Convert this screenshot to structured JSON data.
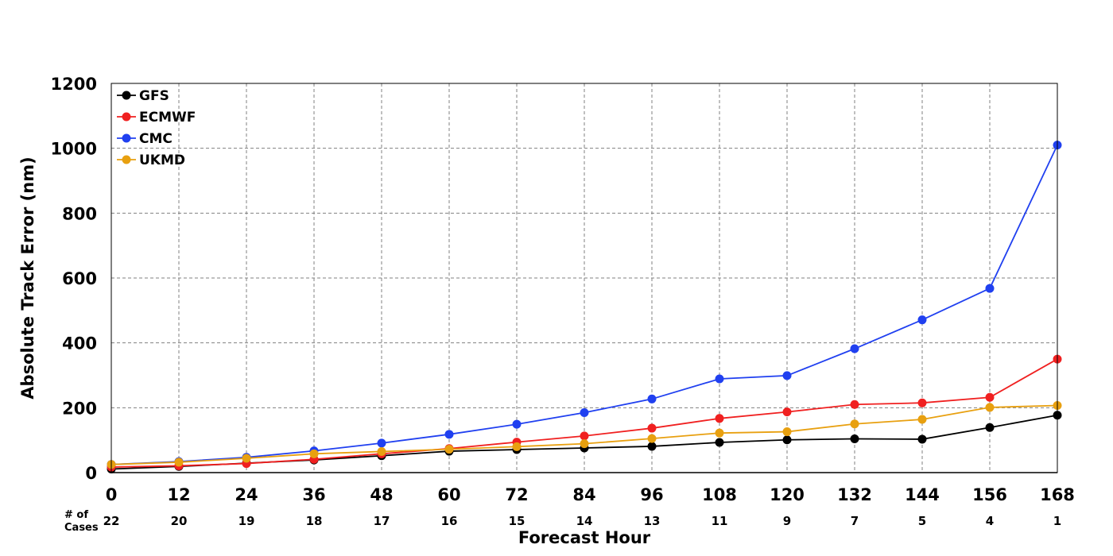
{
  "chart_data": {
    "type": "line",
    "xlabel": "Forecast Hour",
    "ylabel": "Absolute Track Error (nm)",
    "x": [
      0,
      12,
      24,
      36,
      48,
      60,
      72,
      84,
      96,
      108,
      120,
      132,
      144,
      156,
      168
    ],
    "xlim": [
      0,
      168
    ],
    "ylim": [
      0,
      1200
    ],
    "yticks": [
      0,
      200,
      400,
      600,
      800,
      1000,
      1200
    ],
    "grid": true,
    "legend_position": "top-left",
    "cases_label": [
      "# of",
      "Cases"
    ],
    "cases": [
      22,
      20,
      19,
      18,
      17,
      16,
      15,
      14,
      13,
      11,
      9,
      7,
      5,
      4,
      1
    ],
    "series": [
      {
        "name": "GFS",
        "color": "#000000",
        "values": [
          11,
          19,
          29,
          39,
          52,
          66,
          71,
          76,
          81,
          93,
          101,
          104,
          103,
          139,
          177
        ]
      },
      {
        "name": "ECMWF",
        "color": "#f02020",
        "values": [
          17,
          21,
          28,
          41,
          58,
          74,
          94,
          113,
          137,
          167,
          187,
          210,
          215,
          232,
          350
        ]
      },
      {
        "name": "CMC",
        "color": "#2040f0",
        "values": [
          25,
          34,
          47,
          67,
          91,
          118,
          149,
          185,
          227,
          289,
          299,
          382,
          471,
          568,
          1010
        ]
      },
      {
        "name": "UKMD",
        "color": "#e8a010",
        "values": [
          25,
          32,
          44,
          58,
          65,
          72,
          80,
          89,
          105,
          122,
          126,
          150,
          164,
          201,
          207
        ]
      }
    ]
  }
}
